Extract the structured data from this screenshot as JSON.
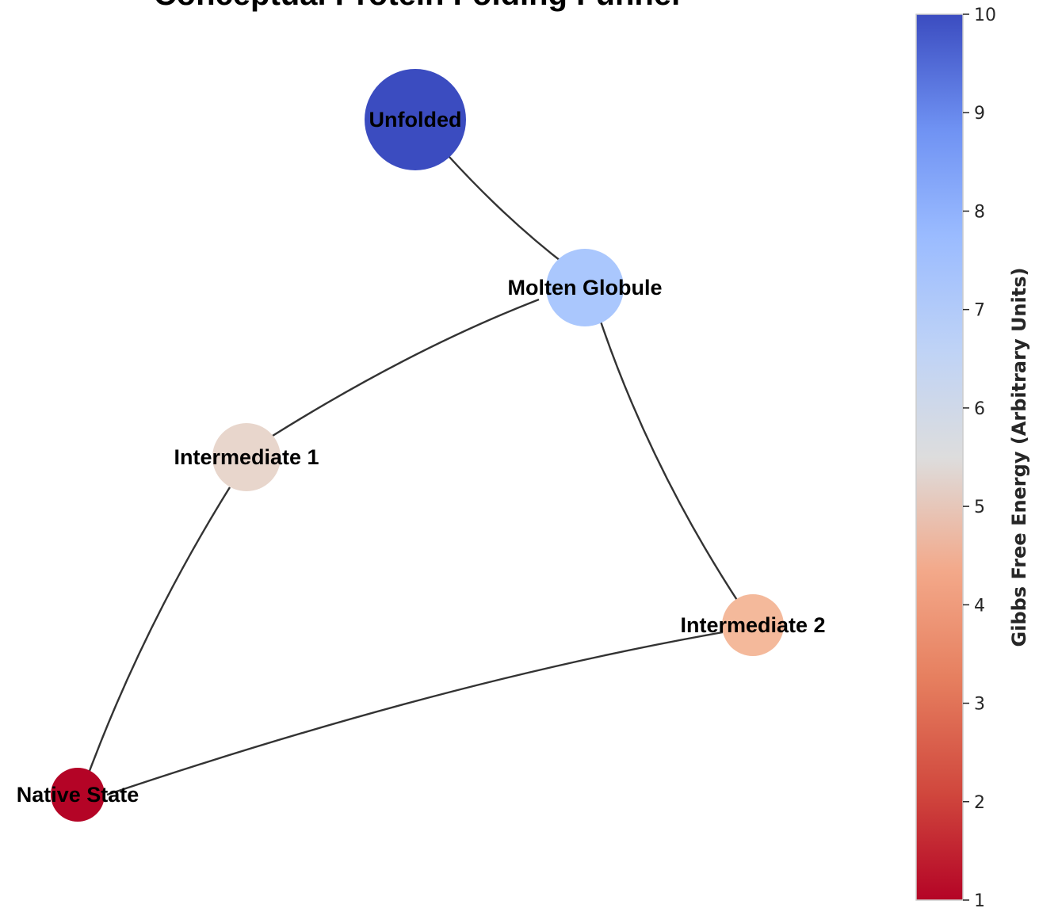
{
  "title": "Conceptual Protein Folding Funnel",
  "nodes": [
    {
      "id": "unfolded",
      "label": "Unfolded",
      "energy": 10,
      "color": "#3b4cc0"
    },
    {
      "id": "molten",
      "label": "Molten Globule",
      "energy": 7,
      "color": "#aac7fd"
    },
    {
      "id": "int1",
      "label": "Intermediate 1",
      "energy": 5,
      "color": "#e8d6cc"
    },
    {
      "id": "int2",
      "label": "Intermediate 2",
      "energy": 4,
      "color": "#f4b99b"
    },
    {
      "id": "native",
      "label": "Native State",
      "energy": 1,
      "color": "#b40426"
    }
  ],
  "edges": [
    {
      "from": "unfolded",
      "to": "molten"
    },
    {
      "from": "molten",
      "to": "int1"
    },
    {
      "from": "molten",
      "to": "int2"
    },
    {
      "from": "int1",
      "to": "native"
    },
    {
      "from": "int2",
      "to": "native"
    }
  ],
  "colorbar": {
    "label": "Gibbs Free Energy (Arbitrary Units)",
    "min": 1,
    "max": 10,
    "ticks": [
      "1",
      "2",
      "3",
      "4",
      "5",
      "6",
      "7",
      "8",
      "9",
      "10"
    ],
    "colormap": "coolwarm",
    "low_color": "#b40426",
    "mid_color": "#dddddd",
    "high_color": "#3b4cc0"
  }
}
